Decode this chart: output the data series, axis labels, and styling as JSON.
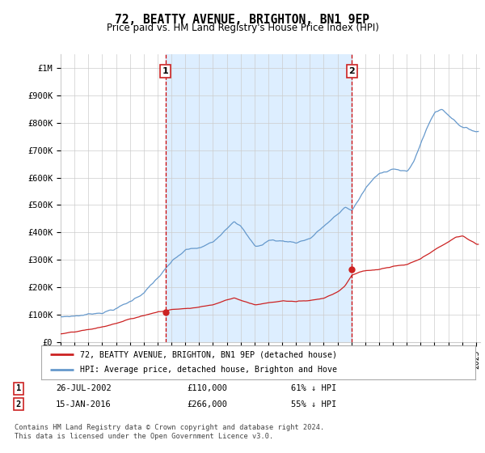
{
  "title": "72, BEATTY AVENUE, BRIGHTON, BN1 9EP",
  "subtitle": "Price paid vs. HM Land Registry's House Price Index (HPI)",
  "footer": "Contains HM Land Registry data © Crown copyright and database right 2024.\nThis data is licensed under the Open Government Licence v3.0.",
  "legend_line1": "72, BEATTY AVENUE, BRIGHTON, BN1 9EP (detached house)",
  "legend_line2": "HPI: Average price, detached house, Brighton and Hove",
  "annotation1_label": "1",
  "annotation1_date": "26-JUL-2002",
  "annotation1_price": "£110,000",
  "annotation1_pct": "61% ↓ HPI",
  "annotation2_label": "2",
  "annotation2_date": "15-JAN-2016",
  "annotation2_price": "£266,000",
  "annotation2_pct": "55% ↓ HPI",
  "ylim": [
    0,
    1050000
  ],
  "yticks": [
    0,
    100000,
    200000,
    300000,
    400000,
    500000,
    600000,
    700000,
    800000,
    900000,
    1000000
  ],
  "ytick_labels": [
    "£0",
    "£100K",
    "£200K",
    "£300K",
    "£400K",
    "£500K",
    "£600K",
    "£700K",
    "£800K",
    "£900K",
    "£1M"
  ],
  "hpi_color": "#6699cc",
  "price_color": "#cc2222",
  "shade_color": "#ddeeff",
  "vline_color": "#cc0000",
  "vline1_x": 2002.57,
  "vline2_x": 2016.04,
  "sale1_x": 2002.57,
  "sale1_y": 110000,
  "sale2_x": 2016.04,
  "sale2_y": 266000,
  "bg_color": "#ffffff",
  "grid_color": "#cccccc",
  "xmin": 1995.3,
  "xmax": 2025.3,
  "xticks": [
    1995,
    1996,
    1997,
    1998,
    1999,
    2000,
    2001,
    2002,
    2003,
    2004,
    2005,
    2006,
    2007,
    2008,
    2009,
    2010,
    2011,
    2012,
    2013,
    2014,
    2015,
    2016,
    2017,
    2018,
    2019,
    2020,
    2021,
    2022,
    2023,
    2024,
    2025
  ]
}
